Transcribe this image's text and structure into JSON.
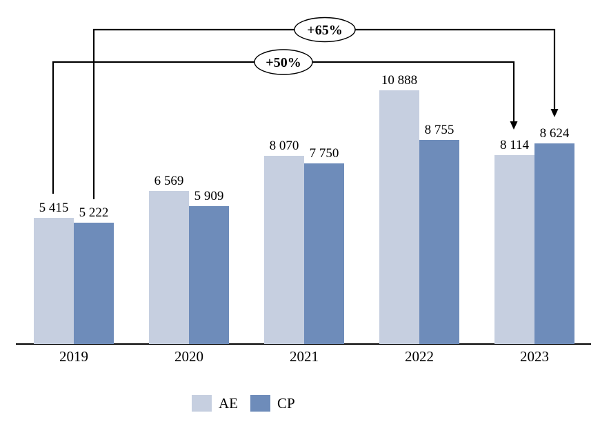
{
  "chart_data": {
    "type": "bar",
    "title": "",
    "xlabel": "",
    "ylabel": "",
    "grid": false,
    "y_axis_visible": false,
    "ylim": [
      0,
      11500
    ],
    "categories": [
      "2019",
      "2020",
      "2021",
      "2022",
      "2023"
    ],
    "series": [
      {
        "name": "AE",
        "color": "#c6cfe0",
        "values": [
          5415,
          6569,
          8070,
          10888,
          8114
        ],
        "labels": [
          "5 415",
          "6 569",
          "8 070",
          "10 888",
          "8 114"
        ]
      },
      {
        "name": "CP",
        "color": "#6e8cba",
        "values": [
          5222,
          5909,
          7750,
          8755,
          8624
        ],
        "labels": [
          "5 222",
          "5 909",
          "7 750",
          "8 755",
          "8 624"
        ]
      }
    ],
    "annotations": [
      {
        "label": "+65%",
        "series": "CP",
        "from_year": "2019",
        "to_year": "2023"
      },
      {
        "label": "+50%",
        "series": "AE",
        "from_year": "2019",
        "to_year": "2023"
      }
    ],
    "legend": {
      "position": "bottom",
      "entries": [
        "AE",
        "CP"
      ]
    }
  }
}
